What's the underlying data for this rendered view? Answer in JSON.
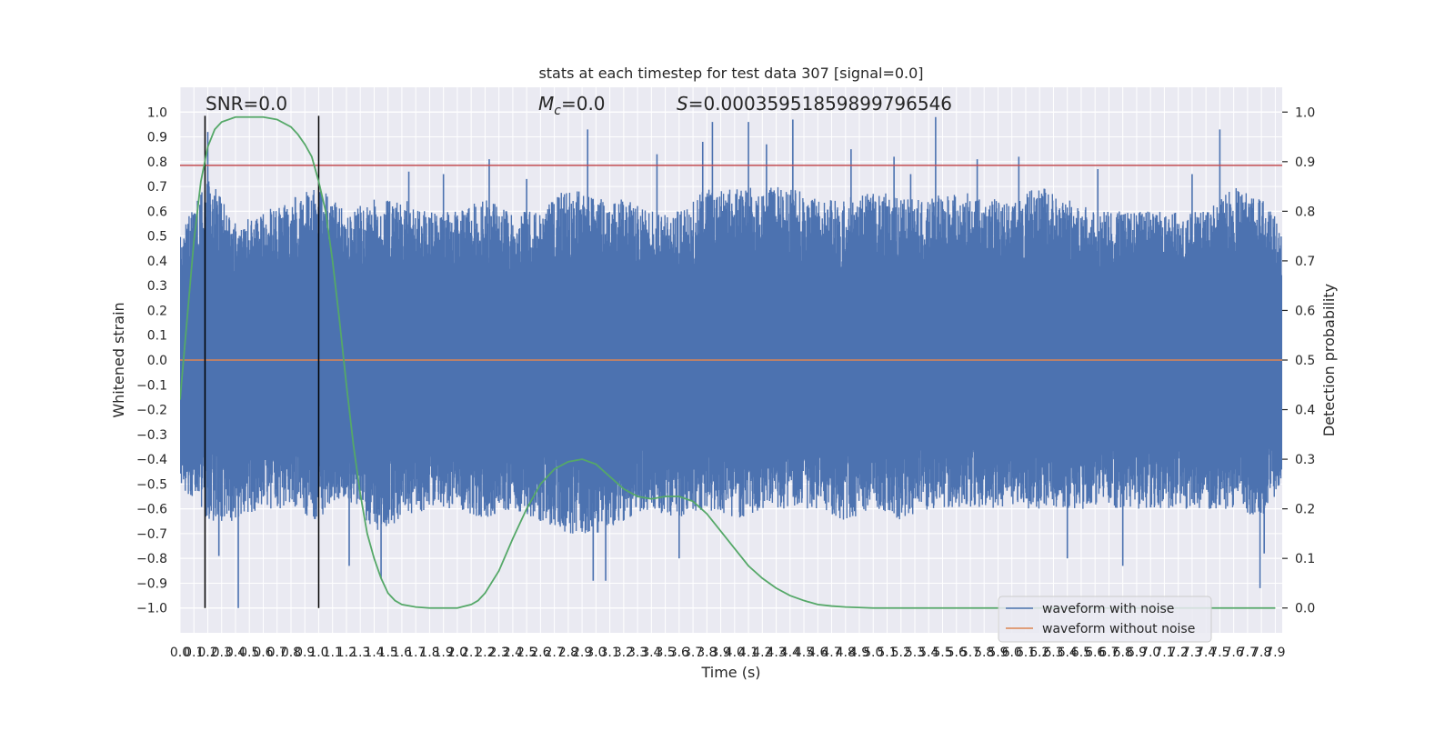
{
  "chart_data": {
    "type": "line",
    "title": "stats at each timestep for test data 307 [signal=0.0]",
    "xlabel": "Time (s)",
    "ylabel": "Whitened strain",
    "y2label": "Detection probability",
    "xlim": [
      0.0,
      7.95
    ],
    "ylim": [
      -1.1,
      1.1
    ],
    "y2lim": [
      -0.05,
      1.05
    ],
    "x_ticks": [
      0.0,
      0.1,
      0.2,
      0.3,
      0.4,
      0.5,
      0.6,
      0.7,
      0.8,
      0.9,
      1.0,
      1.1,
      1.2,
      1.3,
      1.4,
      1.5,
      1.6,
      1.7,
      1.8,
      1.9,
      2.0,
      2.1,
      2.2,
      2.3,
      2.4,
      2.5,
      2.6,
      2.7,
      2.8,
      2.9,
      3.0,
      3.1,
      3.2,
      3.3,
      3.4,
      3.5,
      3.6,
      3.7,
      3.8,
      3.9,
      4.0,
      4.1,
      4.2,
      4.3,
      4.4,
      4.5,
      4.6,
      4.7,
      4.8,
      4.9,
      5.0,
      5.1,
      5.2,
      5.3,
      5.4,
      5.5,
      5.6,
      5.7,
      5.8,
      5.9,
      6.0,
      6.1,
      6.2,
      6.3,
      6.4,
      6.5,
      6.6,
      6.7,
      6.8,
      6.9,
      7.0,
      7.1,
      7.2,
      7.3,
      7.4,
      7.5,
      7.6,
      7.7,
      7.8,
      7.9
    ],
    "x_tick_labels": [
      "0.0",
      "0.1",
      "0.2",
      "0.3",
      "0.4",
      "0.5",
      "0.6",
      "0.7",
      "0.8",
      "0.9",
      "1.0",
      "1.1",
      "1.2",
      "1.3",
      "1.4",
      "1.5",
      "1.6",
      "1.7",
      "1.8",
      "1.9",
      "2.0",
      "2.1",
      "2.2",
      "2.3",
      "2.4",
      "2.5",
      "2.6",
      "2.7",
      "2.8",
      "2.9",
      "3.0",
      "3.1",
      "3.2",
      "3.3",
      "3.4",
      "3.5",
      "3.6",
      "3.7",
      "3.8",
      "3.9",
      "4.0",
      "4.1",
      "4.2",
      "4.3",
      "4.4",
      "4.5",
      "4.6",
      "4.7",
      "4.8",
      "4.9",
      "5.0",
      "5.1",
      "5.2",
      "5.3",
      "5.4",
      "5.5",
      "5.6",
      "5.7",
      "5.8",
      "5.9",
      "6.0",
      "6.1",
      "6.2",
      "6.3",
      "6.4",
      "6.5",
      "6.6",
      "6.7",
      "6.8",
      "6.9",
      "7.0",
      "7.1",
      "7.2",
      "7.3",
      "7.4",
      "7.5",
      "7.6",
      "7.7",
      "7.8",
      "7.9"
    ],
    "y_ticks": [
      1.0,
      0.9,
      0.8,
      0.7,
      0.6,
      0.5,
      0.4,
      0.3,
      0.2,
      0.1,
      0.0,
      -0.1,
      -0.2,
      -0.3,
      -0.4,
      -0.5,
      -0.6,
      -0.7,
      -0.8,
      -0.9,
      -1.0
    ],
    "y_tick_labels": [
      "1.0",
      "0.9",
      "0.8",
      "0.7",
      "0.6",
      "0.5",
      "0.4",
      "0.3",
      "0.2",
      "0.1",
      "0.0",
      "−0.1",
      "−0.2",
      "−0.3",
      "−0.4",
      "−0.5",
      "−0.6",
      "−0.7",
      "−0.8",
      "−0.9",
      "−1.0"
    ],
    "y2_ticks": [
      1.0,
      0.9,
      0.8,
      0.7,
      0.6,
      0.5,
      0.4,
      0.3,
      0.2,
      0.1,
      0.0
    ],
    "y2_tick_labels": [
      "1.0",
      "0.9",
      "0.8",
      "0.7",
      "0.6",
      "0.5",
      "0.4",
      "0.3",
      "0.2",
      "0.1",
      "0.0"
    ],
    "grid": true,
    "legend_placement": "lower-right",
    "series": [
      {
        "name": "waveform with noise",
        "axis": "left",
        "color": "#4c72b0",
        "noise_envelope": {
          "x": [
            0.0,
            0.2,
            0.4,
            0.6,
            0.8,
            1.0,
            1.2,
            1.4,
            1.6,
            1.8,
            2.0,
            2.2,
            2.4,
            2.6,
            2.8,
            3.0,
            3.2,
            3.4,
            3.6,
            3.8,
            4.0,
            4.2,
            4.4,
            4.6,
            4.8,
            5.0,
            5.2,
            5.4,
            5.6,
            5.8,
            6.0,
            6.2,
            6.4,
            6.6,
            6.8,
            7.0,
            7.2,
            7.4,
            7.6,
            7.8,
            7.95
          ],
          "upper": [
            0.5,
            0.75,
            0.55,
            0.6,
            0.65,
            0.7,
            0.6,
            0.65,
            0.65,
            0.6,
            0.6,
            0.65,
            0.6,
            0.6,
            0.7,
            0.65,
            0.65,
            0.6,
            0.6,
            0.7,
            0.7,
            0.7,
            0.7,
            0.65,
            0.65,
            0.7,
            0.65,
            0.65,
            0.7,
            0.65,
            0.65,
            0.7,
            0.65,
            0.6,
            0.6,
            0.6,
            0.6,
            0.6,
            0.7,
            0.65,
            0.55
          ],
          "lower": [
            -0.5,
            -0.65,
            -0.65,
            -0.6,
            -0.6,
            -0.65,
            -0.55,
            -0.7,
            -0.65,
            -0.6,
            -0.6,
            -0.65,
            -0.6,
            -0.65,
            -0.7,
            -0.7,
            -0.65,
            -0.6,
            -0.65,
            -0.6,
            -0.65,
            -0.6,
            -0.6,
            -0.6,
            -0.65,
            -0.6,
            -0.65,
            -0.6,
            -0.6,
            -0.6,
            -0.6,
            -0.6,
            -0.6,
            -0.6,
            -0.6,
            -0.6,
            -0.6,
            -0.6,
            -0.6,
            -0.65,
            -0.5
          ]
        },
        "spikes": [
          {
            "x": 0.2,
            "y": 0.92
          },
          {
            "x": 0.42,
            "y": -1.0
          },
          {
            "x": 0.28,
            "y": -0.79
          },
          {
            "x": 1.22,
            "y": -0.83
          },
          {
            "x": 1.45,
            "y": -0.88
          },
          {
            "x": 2.23,
            "y": 0.81
          },
          {
            "x": 2.94,
            "y": 0.93
          },
          {
            "x": 2.98,
            "y": -0.89
          },
          {
            "x": 3.07,
            "y": -0.89
          },
          {
            "x": 3.44,
            "y": 0.83
          },
          {
            "x": 3.6,
            "y": -0.8
          },
          {
            "x": 3.77,
            "y": 0.88
          },
          {
            "x": 3.84,
            "y": 0.96
          },
          {
            "x": 4.1,
            "y": 0.96
          },
          {
            "x": 4.23,
            "y": 0.87
          },
          {
            "x": 4.42,
            "y": 0.97
          },
          {
            "x": 4.84,
            "y": 0.85
          },
          {
            "x": 5.15,
            "y": 0.82
          },
          {
            "x": 5.45,
            "y": 0.98
          },
          {
            "x": 5.75,
            "y": 0.81
          },
          {
            "x": 6.05,
            "y": 0.82
          },
          {
            "x": 6.4,
            "y": -0.8
          },
          {
            "x": 6.8,
            "y": -0.83
          },
          {
            "x": 7.5,
            "y": 0.93
          },
          {
            "x": 7.79,
            "y": -0.92
          },
          {
            "x": 7.82,
            "y": -0.78
          },
          {
            "x": 5.27,
            "y": 0.75
          },
          {
            "x": 1.65,
            "y": 0.76
          },
          {
            "x": 1.9,
            "y": 0.75
          },
          {
            "x": 2.5,
            "y": 0.73
          },
          {
            "x": 7.3,
            "y": 0.75
          },
          {
            "x": 6.62,
            "y": 0.77
          }
        ]
      },
      {
        "name": "waveform without noise",
        "axis": "left",
        "color": "#dd8452",
        "x": [
          0.0,
          7.95
        ],
        "y": [
          0.0,
          0.0
        ]
      },
      {
        "name": "",
        "axis": "right",
        "color": "#55a868",
        "x": [
          0.0,
          0.05,
          0.1,
          0.15,
          0.2,
          0.25,
          0.3,
          0.4,
          0.5,
          0.6,
          0.7,
          0.8,
          0.85,
          0.9,
          0.95,
          1.0,
          1.05,
          1.1,
          1.15,
          1.2,
          1.25,
          1.3,
          1.35,
          1.4,
          1.45,
          1.5,
          1.55,
          1.6,
          1.7,
          1.8,
          1.9,
          2.0,
          2.1,
          2.15,
          2.2,
          2.3,
          2.4,
          2.5,
          2.6,
          2.7,
          2.8,
          2.9,
          3.0,
          3.1,
          3.2,
          3.3,
          3.4,
          3.5,
          3.6,
          3.7,
          3.8,
          3.9,
          4.0,
          4.1,
          4.2,
          4.3,
          4.4,
          4.5,
          4.6,
          4.7,
          4.8,
          5.0,
          5.5,
          6.0,
          6.5,
          7.0,
          7.5,
          7.9
        ],
        "y": [
          0.42,
          0.58,
          0.74,
          0.86,
          0.93,
          0.965,
          0.98,
          0.99,
          0.99,
          0.99,
          0.985,
          0.97,
          0.955,
          0.935,
          0.91,
          0.86,
          0.8,
          0.7,
          0.58,
          0.45,
          0.33,
          0.23,
          0.15,
          0.1,
          0.06,
          0.03,
          0.015,
          0.007,
          0.002,
          0.0,
          0.0,
          0.0,
          0.007,
          0.015,
          0.03,
          0.075,
          0.14,
          0.2,
          0.25,
          0.28,
          0.295,
          0.3,
          0.29,
          0.265,
          0.24,
          0.225,
          0.22,
          0.225,
          0.225,
          0.215,
          0.19,
          0.155,
          0.12,
          0.085,
          0.06,
          0.04,
          0.025,
          0.015,
          0.007,
          0.004,
          0.002,
          0.0,
          0.0,
          0.0,
          0.0,
          0.0,
          0.0,
          0.0
        ]
      }
    ],
    "threshold_line": {
      "axis": "left",
      "y": 0.785,
      "color": "#c44e52"
    },
    "vertical_markers": [
      {
        "x": 0.18,
        "y_from": -1.0,
        "y_to": 0.985,
        "color": "#000000"
      },
      {
        "x": 1.0,
        "y_from": -1.0,
        "y_to": 0.985,
        "color": "#000000"
      }
    ],
    "annotations": [
      {
        "text": "SNR=0.0"
      },
      {
        "text_main": "M",
        "text_sub": "c",
        "text_rest": "=0.0"
      },
      {
        "text_main": "S",
        "text_rest": "=0.00035951859899796546"
      }
    ],
    "colors": {
      "axes_background": "#eaeaf2",
      "grid": "#ffffff",
      "legend_background": "#eaeaf2"
    }
  }
}
